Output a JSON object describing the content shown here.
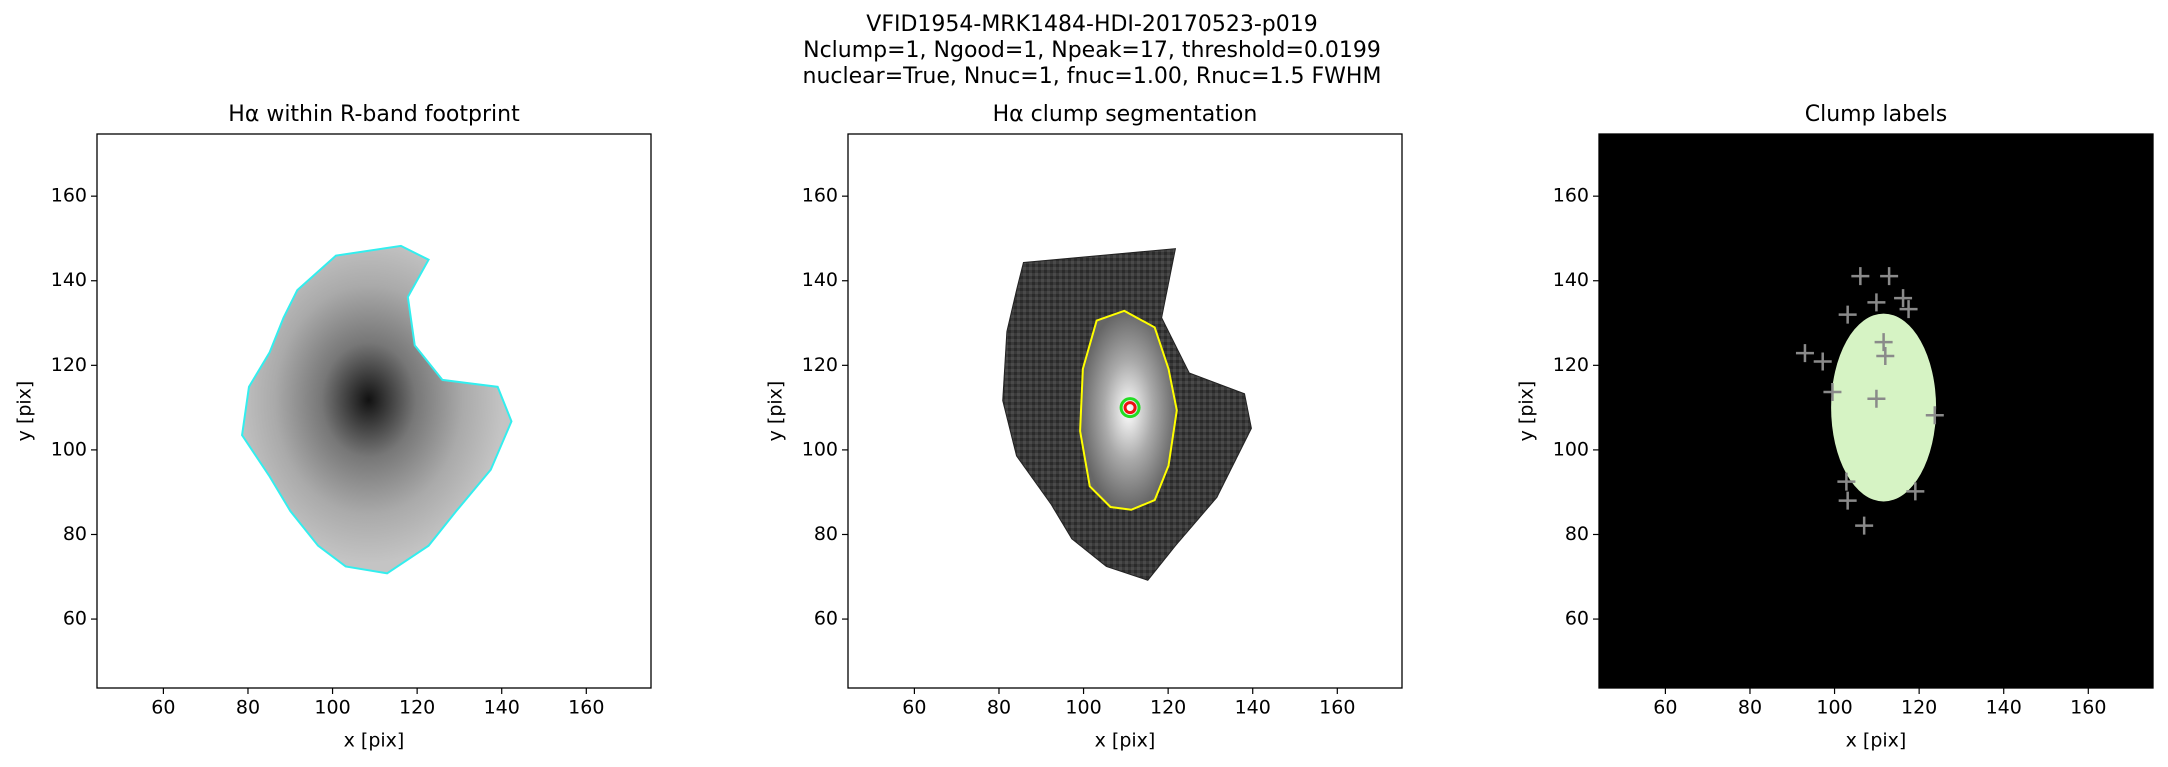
{
  "figure_title": [
    "VFID1954-MRK1484-HDI-20170523-p019",
    "Nclump=1, Ngood=1, Npeak=17, threshold=0.0199",
    "nuclear=True, Nnuc=1, fnuc=1.00, Rnuc=1.5 FWHM"
  ],
  "chart_data": [
    {
      "type": "image",
      "title": "Hα within R-band footprint",
      "x_label": "x [pix]",
      "y_label": "y [pix]",
      "xlim": [
        44.3,
        175.3
      ],
      "ylim": [
        43.7,
        174.7
      ],
      "xticks": [
        60,
        80,
        100,
        120,
        140,
        160
      ],
      "yticks": [
        60,
        80,
        100,
        120,
        140,
        160
      ],
      "background": "footprint",
      "series": []
    },
    {
      "type": "image",
      "title": "Hα clump segmentation",
      "x_label": "x [pix]",
      "y_label": "y [pix]",
      "xlim": [
        44.3,
        175.3
      ],
      "ylim": [
        43.7,
        174.7
      ],
      "xticks": [
        60,
        80,
        100,
        120,
        140,
        160
      ],
      "yticks": [
        60,
        80,
        100,
        120,
        140,
        160
      ],
      "background": "segmentation",
      "series": [
        {
          "color": "#22dd22",
          "marker": "o",
          "x": [
            111
          ],
          "values": [
            110
          ]
        },
        {
          "color": "#ee1111",
          "marker": "o",
          "x": [
            111
          ],
          "values": [
            110
          ]
        }
      ]
    },
    {
      "type": "image",
      "title": "Clump labels",
      "x_label": "x [pix]",
      "y_label": "y [pix]",
      "xlim": [
        44.3,
        175.3
      ],
      "ylim": [
        43.7,
        174.7
      ],
      "xticks": [
        60,
        80,
        100,
        120,
        140,
        160
      ],
      "yticks": [
        60,
        80,
        100,
        120,
        140,
        160
      ],
      "background": "labels",
      "series": [
        {
          "color": "#8a8a8a",
          "marker": "+",
          "x": [
            106.1,
            112.9,
            103.1,
            109.9,
            116.2,
            117.5,
            111.6,
            112.0,
            93.0,
            97.2,
            99.5,
            109.9,
            123.7,
            102.8,
            119.1,
            103.1,
            107.0
          ],
          "values": [
            141.1,
            141.1,
            132.0,
            134.9,
            135.9,
            133.3,
            125.5,
            122.2,
            122.9,
            120.9,
            113.7,
            112.1,
            108.2,
            92.5,
            90.2,
            88.0,
            82.1
          ]
        }
      ]
    }
  ]
}
